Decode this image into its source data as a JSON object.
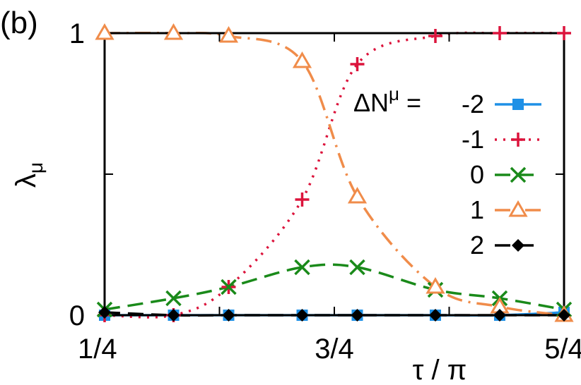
{
  "chart_data": {
    "type": "line",
    "panel_label": "(b)",
    "xlabel": "τ / π",
    "ylabel": "λ",
    "ylabel_subscript": "μ",
    "xlim": [
      0.25,
      1.25
    ],
    "ylim": [
      0,
      1
    ],
    "x_ticks": [
      {
        "value": 0.25,
        "label": "1/4"
      },
      {
        "value": 0.75,
        "label": "3/4"
      },
      {
        "value": 1.25,
        "label": "5/4"
      }
    ],
    "y_ticks": [
      {
        "value": 0,
        "label": "0"
      },
      {
        "value": 1,
        "label": "1"
      }
    ],
    "x_minor_ticks": [
      0.5,
      1.0
    ],
    "y_minor_ticks": [
      0.5
    ],
    "legend": {
      "title": "ΔN",
      "title_superscript": "μ",
      "title_suffix": "=",
      "placement": "right"
    },
    "x": [
      0.25,
      0.4,
      0.52,
      0.68,
      0.8,
      0.97,
      1.11,
      1.25
    ],
    "series": [
      {
        "name": "-2",
        "color": "#1E90E6",
        "marker": "square",
        "dash": "solid",
        "values": [
          0.0,
          0.0,
          0.0,
          0.0,
          0.0,
          0.0,
          0.0,
          0.01
        ]
      },
      {
        "name": "-1",
        "color": "#DC143C",
        "marker": "plus",
        "dash": "dotted",
        "values": [
          0.0,
          0.0,
          0.1,
          0.41,
          0.89,
          0.99,
          1.0,
          1.0
        ]
      },
      {
        "name": "0",
        "color": "#1A8A1A",
        "marker": "cross",
        "dash": "dashed",
        "values": [
          0.02,
          0.06,
          0.1,
          0.17,
          0.17,
          0.09,
          0.06,
          0.02
        ]
      },
      {
        "name": "1",
        "color": "#F08C4A",
        "marker": "triangle",
        "dash": "dashdot",
        "values": [
          1.0,
          1.0,
          0.99,
          0.9,
          0.42,
          0.1,
          0.03,
          0.0
        ]
      },
      {
        "name": "2",
        "color": "#000000",
        "marker": "diamond",
        "dash": "dashed",
        "values": [
          0.01,
          0.0,
          0.0,
          0.0,
          0.0,
          0.0,
          0.0,
          0.0
        ]
      }
    ]
  }
}
